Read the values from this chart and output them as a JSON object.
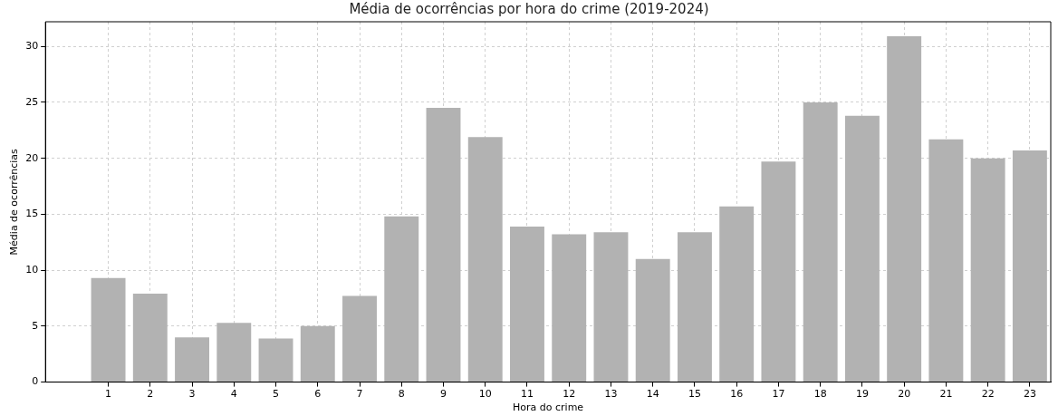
{
  "chart_data": {
    "type": "bar",
    "title": "Média de ocorrências por hora do crime (2019-2024)",
    "xlabel": "Hora do crime",
    "ylabel": "Média de ocorrências",
    "x": [
      1,
      2,
      3,
      4,
      5,
      6,
      7,
      8,
      9,
      10,
      11,
      12,
      13,
      14,
      15,
      16,
      17,
      18,
      19,
      20,
      21,
      22,
      23
    ],
    "values": [
      9.3,
      7.9,
      4.0,
      5.3,
      3.9,
      5.0,
      7.7,
      14.8,
      24.5,
      21.9,
      13.9,
      13.2,
      13.4,
      11.0,
      13.4,
      15.7,
      19.7,
      25.0,
      23.8,
      30.9,
      21.7,
      20.0,
      20.7
    ],
    "color": "#b2b2b2",
    "xlim": [
      -0.5,
      23.5
    ],
    "xticks": [
      1,
      2,
      3,
      4,
      5,
      6,
      7,
      8,
      9,
      10,
      11,
      12,
      13,
      14,
      15,
      16,
      17,
      18,
      19,
      20,
      21,
      22,
      23
    ],
    "ylim": [
      0,
      32.2
    ],
    "yticks": [
      0,
      5,
      10,
      15,
      20,
      25,
      30
    ],
    "grid": true,
    "legend": false
  }
}
